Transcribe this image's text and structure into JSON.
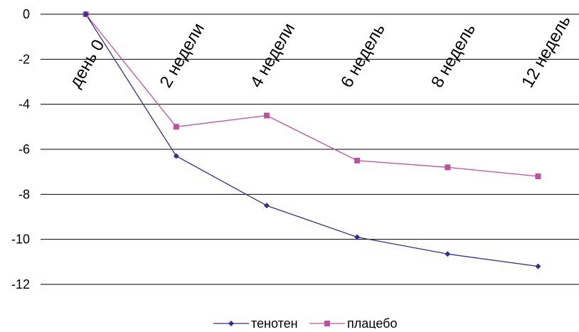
{
  "chart_data": {
    "type": "line",
    "categories": [
      "день 0",
      "2 недели",
      "4 недели",
      "6 недель",
      "8 недель",
      "12 недель"
    ],
    "series": [
      {
        "name": "тенотен",
        "values": [
          0,
          -6.3,
          -8.5,
          -9.9,
          -10.65,
          -11.2
        ],
        "color": "#2e3192",
        "marker": "diamond"
      },
      {
        "name": "плацебо",
        "values": [
          0,
          -5.0,
          -4.5,
          -6.5,
          -6.8,
          -7.2
        ],
        "color": "#bd4fa5",
        "marker": "square"
      }
    ],
    "yticks": [
      "0",
      "-2",
      "-4",
      "-6",
      "-8",
      "-10",
      "-12"
    ],
    "ylim": [
      -12,
      0
    ],
    "title": "",
    "xlabel": "",
    "ylabel": "",
    "grid": true,
    "legend_position": "bottom-center"
  }
}
